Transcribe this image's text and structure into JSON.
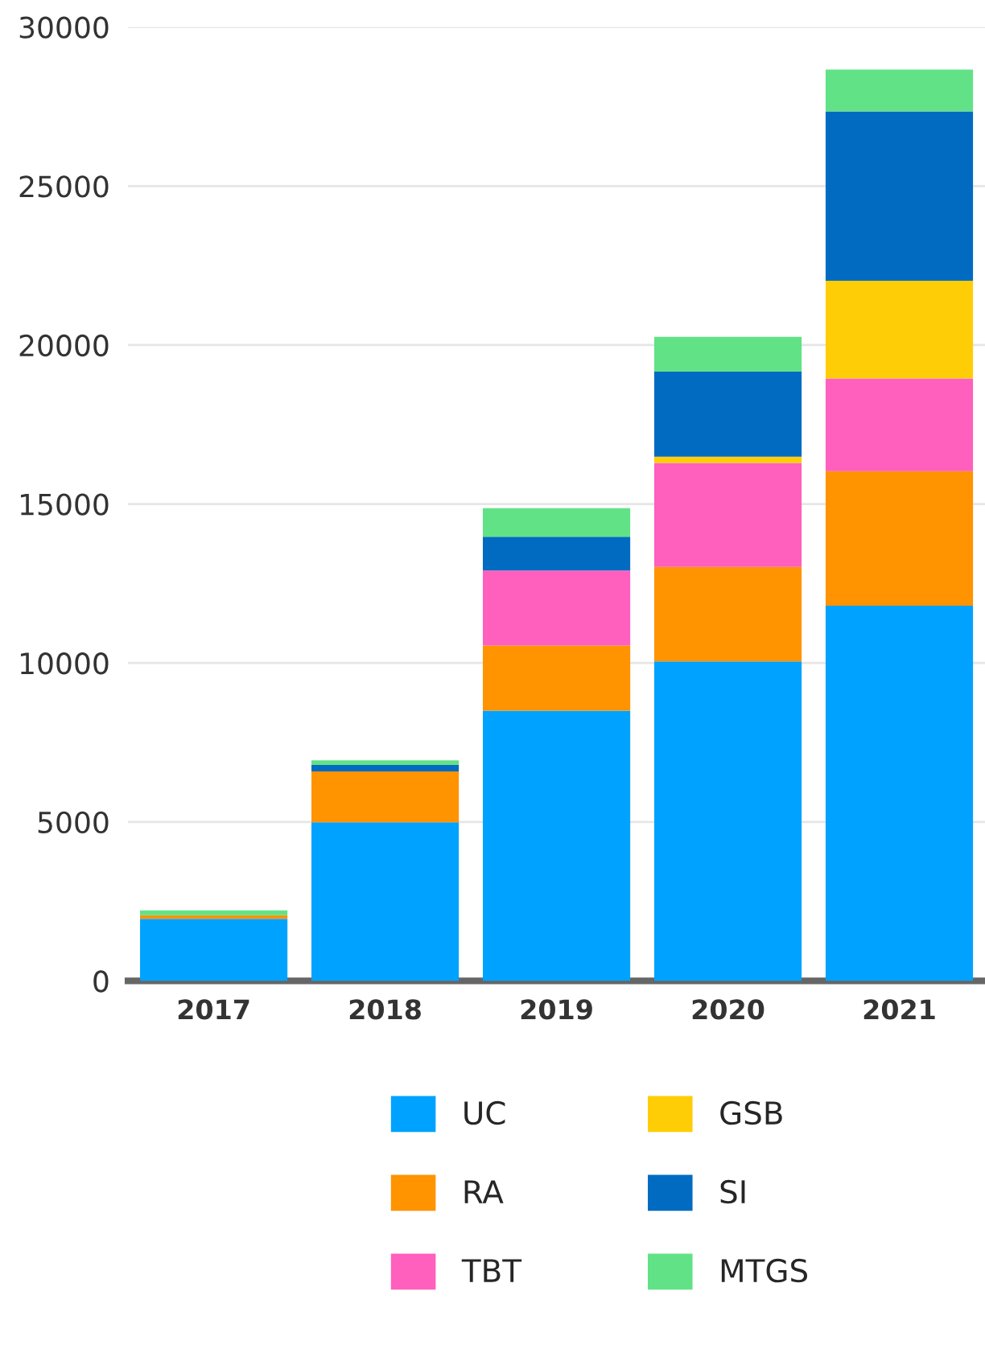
{
  "chart_data": {
    "type": "bar",
    "stacked": true,
    "categories": [
      "2017",
      "2018",
      "2019",
      "2020",
      "2021"
    ],
    "series": [
      {
        "name": "UC",
        "color": "#00a2ff",
        "values": [
          1950,
          4990,
          8500,
          10050,
          11800
        ]
      },
      {
        "name": "RA",
        "color": "#ff9300",
        "values": [
          120,
          1600,
          2050,
          2970,
          4230
        ]
      },
      {
        "name": "TBT",
        "color": "#ff5fbd",
        "values": [
          0,
          0,
          2360,
          3270,
          2920
        ]
      },
      {
        "name": "GSB",
        "color": "#ffcd06",
        "values": [
          0,
          0,
          0,
          200,
          3070
        ]
      },
      {
        "name": "SI",
        "color": "#006bc1",
        "values": [
          0,
          200,
          1060,
          2670,
          5330
        ]
      },
      {
        "name": "MTGS",
        "color": "#61e286",
        "values": [
          150,
          150,
          900,
          1100,
          1310
        ]
      }
    ],
    "ylim": [
      0,
      30000
    ],
    "yticks": [
      0,
      5000,
      10000,
      15000,
      20000,
      25000,
      30000
    ],
    "grid": "y",
    "legend": "bottom"
  }
}
